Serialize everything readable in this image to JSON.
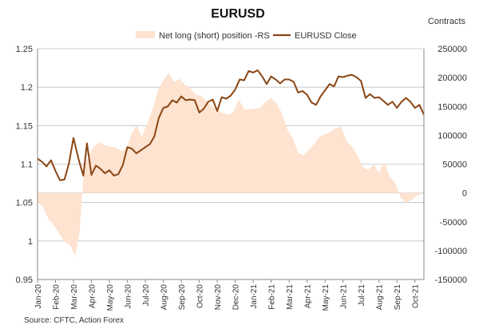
{
  "chart_data": {
    "type": "line+area",
    "title": "EURUSD",
    "right_axis_label": "Contracts",
    "source": "Source: CFTC, Action Forex",
    "colors": {
      "area": "#fde3d0",
      "line": "#8b4513",
      "grid": "#bfbfbf"
    },
    "legend": [
      {
        "name": "Net long (short) position -RS",
        "kind": "area"
      },
      {
        "name": "EURUSD Close",
        "kind": "line"
      }
    ],
    "left_axis": {
      "ylim": [
        0.95,
        1.25
      ],
      "ticks": [
        "0.95",
        "1",
        "1.05",
        "1.1",
        "1.15",
        "1.2",
        "1.25"
      ],
      "tick_values": [
        0.95,
        1.0,
        1.05,
        1.1,
        1.15,
        1.2,
        1.25
      ]
    },
    "right_axis": {
      "ylim": [
        -150000,
        250000
      ],
      "ticks": [
        "-150000",
        "-100000",
        "-50000",
        "0",
        "50000",
        "100000",
        "150000",
        "200000",
        "250000"
      ],
      "tick_values": [
        -150000,
        -100000,
        -50000,
        0,
        50000,
        100000,
        150000,
        200000,
        250000
      ]
    },
    "x_tick_labels": [
      "Jan-20",
      "Feb-20",
      "Mar-20",
      "Apr-20",
      "May-20",
      "Jun-20",
      "Jul-20",
      "Aug-20",
      "Sep-20",
      "Oct-20",
      "Nov-20",
      "Dec-20",
      "Jan-21",
      "Feb-21",
      "Mar-21",
      "Apr-21",
      "May-21",
      "Jun-21",
      "Jul-21",
      "Aug-21",
      "Sep-21",
      "Oct-21"
    ],
    "x_range": [
      0,
      21.5
    ],
    "series": [
      {
        "name": "Net long (short) position -RS",
        "axis": "right",
        "x": [
          0,
          0.3,
          0.6,
          0.9,
          1.2,
          1.5,
          1.8,
          2.1,
          2.35,
          2.6,
          2.8,
          3.0,
          3.2,
          3.5,
          3.8,
          4.1,
          4.4,
          4.7,
          5.0,
          5.2,
          5.5,
          5.8,
          6.1,
          6.4,
          6.7,
          7.0,
          7.3,
          7.6,
          7.9,
          8.2,
          8.5,
          8.8,
          9.1,
          9.4,
          9.7,
          10.0,
          10.3,
          10.6,
          10.9,
          11.2,
          11.5,
          11.8,
          12.1,
          12.4,
          12.7,
          13.0,
          13.3,
          13.6,
          13.9,
          14.2,
          14.5,
          14.8,
          15.1,
          15.4,
          15.7,
          16.0,
          16.3,
          16.6,
          16.9,
          17.2,
          17.5,
          17.8,
          18.1,
          18.4,
          18.7,
          19.0,
          19.3,
          19.6,
          19.9,
          20.2,
          20.5,
          20.8,
          21.1,
          21.4
        ],
        "values": [
          -15000,
          -25000,
          -45000,
          -55000,
          -70000,
          -85000,
          -90000,
          -110000,
          -65000,
          50000,
          60000,
          75000,
          82000,
          88000,
          82000,
          80000,
          78000,
          72000,
          80000,
          100000,
          118000,
          98000,
          120000,
          145000,
          178000,
          195000,
          208000,
          192000,
          198000,
          188000,
          182000,
          170000,
          168000,
          160000,
          150000,
          145000,
          138000,
          136000,
          140000,
          162000,
          145000,
          145000,
          146000,
          148000,
          158000,
          165000,
          155000,
          138000,
          110000,
          95000,
          70000,
          65000,
          75000,
          85000,
          98000,
          102000,
          106000,
          112000,
          115000,
          90000,
          80000,
          65000,
          45000,
          40000,
          50000,
          35000,
          52000,
          28000,
          18000,
          -8000,
          -18000,
          -12000,
          -5000,
          -2000
        ]
      },
      {
        "name": "EURUSD Close",
        "axis": "left",
        "x": [
          0,
          0.25,
          0.5,
          0.75,
          1.0,
          1.25,
          1.5,
          1.75,
          2.0,
          2.3,
          2.55,
          2.75,
          3.0,
          3.25,
          3.5,
          3.75,
          4.0,
          4.25,
          4.5,
          4.75,
          5.0,
          5.25,
          5.5,
          5.75,
          6.0,
          6.25,
          6.5,
          6.75,
          7.0,
          7.25,
          7.5,
          7.75,
          8.0,
          8.25,
          8.5,
          8.75,
          9.0,
          9.25,
          9.5,
          9.75,
          10.0,
          10.25,
          10.5,
          10.75,
          11.0,
          11.25,
          11.5,
          11.75,
          12.0,
          12.25,
          12.5,
          12.75,
          13.0,
          13.25,
          13.5,
          13.75,
          14.0,
          14.25,
          14.5,
          14.75,
          15.0,
          15.25,
          15.5,
          15.75,
          16.0,
          16.25,
          16.5,
          16.75,
          17.0,
          17.25,
          17.5,
          17.75,
          18.0,
          18.25,
          18.5,
          18.75,
          19.0,
          19.25,
          19.5,
          19.75,
          20.0,
          20.25,
          20.5,
          20.75,
          21.0,
          21.25,
          21.5
        ],
        "values": [
          1.107,
          1.103,
          1.097,
          1.105,
          1.091,
          1.079,
          1.08,
          1.101,
          1.134,
          1.105,
          1.085,
          1.127,
          1.086,
          1.098,
          1.094,
          1.088,
          1.092,
          1.085,
          1.087,
          1.099,
          1.122,
          1.12,
          1.114,
          1.118,
          1.122,
          1.126,
          1.136,
          1.16,
          1.173,
          1.175,
          1.183,
          1.18,
          1.188,
          1.183,
          1.184,
          1.183,
          1.167,
          1.172,
          1.181,
          1.184,
          1.169,
          1.187,
          1.185,
          1.189,
          1.197,
          1.21,
          1.209,
          1.221,
          1.219,
          1.222,
          1.214,
          1.204,
          1.214,
          1.21,
          1.205,
          1.21,
          1.21,
          1.207,
          1.193,
          1.195,
          1.19,
          1.18,
          1.177,
          1.188,
          1.196,
          1.204,
          1.201,
          1.214,
          1.213,
          1.215,
          1.216,
          1.213,
          1.208,
          1.186,
          1.191,
          1.186,
          1.187,
          1.182,
          1.177,
          1.181,
          1.173,
          1.181,
          1.186,
          1.181,
          1.173,
          1.177,
          1.164
        ]
      }
    ]
  }
}
